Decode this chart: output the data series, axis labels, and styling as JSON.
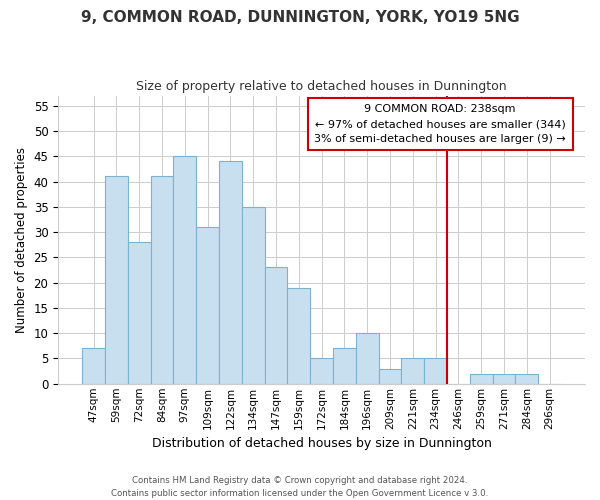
{
  "title": "9, COMMON ROAD, DUNNINGTON, YORK, YO19 5NG",
  "subtitle": "Size of property relative to detached houses in Dunnington",
  "xlabel": "Distribution of detached houses by size in Dunnington",
  "ylabel": "Number of detached properties",
  "footer_line1": "Contains HM Land Registry data © Crown copyright and database right 2024.",
  "footer_line2": "Contains public sector information licensed under the Open Government Licence v 3.0.",
  "bar_labels": [
    "47sqm",
    "59sqm",
    "72sqm",
    "84sqm",
    "97sqm",
    "109sqm",
    "122sqm",
    "134sqm",
    "147sqm",
    "159sqm",
    "172sqm",
    "184sqm",
    "196sqm",
    "209sqm",
    "221sqm",
    "234sqm",
    "246sqm",
    "259sqm",
    "271sqm",
    "284sqm",
    "296sqm"
  ],
  "bar_values": [
    7,
    41,
    28,
    41,
    45,
    31,
    44,
    35,
    23,
    19,
    5,
    7,
    10,
    3,
    5,
    5,
    0,
    2,
    2,
    2,
    0
  ],
  "bar_color": "#c8dff0",
  "bar_edge_color": "#7ab3d0",
  "ylim": [
    0,
    57
  ],
  "yticks": [
    0,
    5,
    10,
    15,
    20,
    25,
    30,
    35,
    40,
    45,
    50,
    55
  ],
  "annotation_title": "9 COMMON ROAD: 238sqm",
  "annotation_line1": "← 97% of detached houses are smaller (344)",
  "annotation_line2": "3% of semi-detached houses are larger (9) →",
  "vline_x_index": 15.5,
  "vline_color": "#cc0000",
  "background_color": "#ffffff",
  "grid_color": "#cccccc"
}
